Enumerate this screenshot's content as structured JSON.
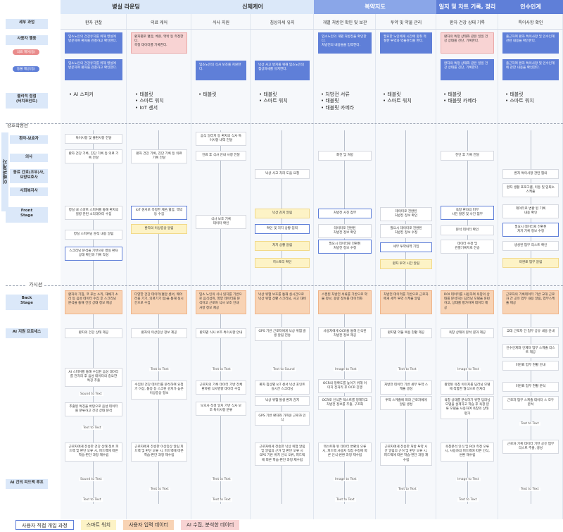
{
  "phases": [
    "병실 라운딩",
    "신체케어",
    "복약지도",
    "일지 및 차트 기록, 정리",
    "인수인계"
  ],
  "detail_header": "세부 과업",
  "tasks": [
    "환자 관찰",
    "의료 케어",
    "식사 지원",
    "침상자세 유지",
    "개별 처방전 확인 및 보관",
    "투약 및 약물 관리",
    "환자 건강 상태 기록",
    "특이사항 확인"
  ],
  "rows": {
    "user_action": "사용자 행동",
    "touchpoint": "물리적 접점\n(터치포인트)",
    "interaction": "상호작용선",
    "patient": "환자-보호자",
    "doctor": "의사",
    "coworker": "동료 간호(조무)사,\n요양보호사",
    "social_worker": "사회복지사",
    "front": "Front\nStage",
    "visibility": "가시선",
    "back": "Back\nStage",
    "ai_process": "AI 지원 프로세스",
    "ai_loop": "AI 간의 피드백 루프",
    "stakeholders": "이해관계자"
  },
  "pills": {
    "care": "의료 케어(등)",
    "meal": "동물 제공(등)"
  },
  "user_actions": {
    "a1": "입소노인의 건강유지를 위해 병실에 방문하여 환자를 관찰하고 확인한다.",
    "a2": "입소노인의 건강유지를 위해 병실에 방문하여 환자를 관찰하고 확인한다.",
    "b1": "환자별로 혈압, 체온, 맥박 등 측정한다.\n측정 데이터를 기록한다.",
    "c1": "입소노인의 식사 보조를 지원한다.",
    "d1": "낙상 사고 방지를 위해 입소노인의 침상자세를 유지한다.",
    "e1": "입소노인의 개별 처방전을 확인한다.\n처방전의 내용들을 입력한다.",
    "f1": "필요한 노인에게 시간에 맞춰 적절한 투약과 약물관리를 한다.",
    "g1": "환자의 특정 상태와 같은 일일 건강 상태를 진단, 기록한다.",
    "g2": "환자의 특정 상태와 같은 일일 건강 상태를 진단, 기록한다.",
    "h1": "출근하여 환자 특이사항 및 인수인계 관련 내용을 확인한다.",
    "h2": "출근하여 환자 특이사항 및 인수인계에 관한 내용을 확인한다."
  },
  "touchpoints": {
    "a": [
      "AI 스피커"
    ],
    "b": [
      "태블릿",
      "스마트 워치",
      "IoT 센서"
    ],
    "c": [
      "태블릿"
    ],
    "d": [
      "태블릿",
      "스마트 워치"
    ],
    "e": [
      "처방전 서류",
      "태블릿",
      "태블릿 카메라"
    ],
    "f": [
      "태블릿",
      "스마트 워치"
    ],
    "g": [
      "태블릿",
      "태블릿 카메라"
    ],
    "h": [
      "태블릿",
      "스마트 워치"
    ]
  },
  "interaction_items": {
    "a_patient": "특이사항 및 불편사항 전달",
    "a_doctor": "환자 건강 기록, 진단 기록 등 의료 기록 전달",
    "b_doctor": "환자 건강 기록, 진단 기록 등 의료 기록 전달",
    "c_patient": "음식 알러지 등 환자의 식사 특이사항 내역 전달",
    "c_doctor": "진료 후 식사 안내 사항 전달",
    "d_cowork": "낙상 사고 처리 도움 요청",
    "e_doctor": "회진 및 처방",
    "g_doctor": "진단 후 기록 전달",
    "h_cowork": "환자 특이사항 관련 협의",
    "h_social": "환자 생활 프로그램, 이동 및 입퇴소 스케줄"
  },
  "front_items": {
    "a1": "병실 내 스마트 스피커를 통해 환자의 질병 관련 소리데이터 수집",
    "a2": "병실 스피커닝 분석 내용 알림",
    "a3": "스크리닝 분석을 기반으로 병실 환자 상태 확인과 기록 작성",
    "b1": "IoT 센서로 측정한 체온,혈압, 맥박 등 수집",
    "b2": "환자의 이상증상 알림",
    "c1": "식사 보조 기록\n데이터 확인",
    "d1": "낙상 감지 알림",
    "d2": "확인 및 처치 상황 입력",
    "d3": "처치 상황 알림",
    "d4": "히스토리 확인",
    "e1": "처방전 사진 첨부",
    "e2": "데이터로 전환된\n처방전 정보 확인",
    "e3": "필요시 데이터로 전환된\n처방전 정보 수정",
    "f1": "데이터로 전환된\n처방전 정보 확인",
    "f2": "필요시 데이터로 전환된\n처방전 정보 수정",
    "f3": "세부 투약내역 기입",
    "f4": "환자 투약 시간 알림",
    "g1": "욕창 환자의 피부\n사진 촬영 및 사진 첨부",
    "g2": "분석 데이터 확인",
    "g3": "데이터 수정 및\n관찰기록지로 전송",
    "h1": "데이터로 변환 된 기록\n내용 확인",
    "h2": "필요시 데이터로 전환된\n처치 기록 정보 수정",
    "h3": "생성된 업무 리스트 확인",
    "h4": "미완료 업무 알림"
  },
  "visibility_label": "가시선",
  "back_items": {
    "a": "환자의 기침, 코 푸는 소리, 재채기 소리 등 음성 데이터 수집 후 스크리닝 분석을 통해 건강 상태 정보 제공",
    "b": "다양한 건강 데이터(혈압 센서, 웨어러블 기기, 의료기기 등)을 통해 실시간으로 수집",
    "c": "입소 노인의 식사 읽치를 기반으로 음식섭취, 영양 데이터를 분석하고 근로자 식사 보조 안내 사항 정보 제공",
    "d": "낙상 위험 보호를 통해 실시간으로 낙상 위험 상황 스크리닝, 사고 대비",
    "e": "스캔된 처방전 서류를 기반으로 약물 정보, 용량 정보를 데이터화",
    "f": "처방전 데이터를 기반으로 근로자에게 세부 투약 스케줄 알림",
    "g": "ROI 데이터를 사용하여 욕창의 상태를 분석하는 딥러닝 모델을 훈련하고, 상태를 평가하여 데이터 제공",
    "h": "근로자의 기록데이터 기반 교대 근로자 간 공유 업무 내용 알림, 업무스케줄 제공"
  },
  "ai_items": {
    "a1": "환자의 건강 상태 제공",
    "a2": "AI 스피커를 통해 수집된 음성 데이터를 전처리 후 음성 데이터의 중요한 특징 추출",
    "a3": "추출된 특징을 바탕으로 음성 데이터를 분류하고 건강 상태 분석",
    "a4": "근로자에게 전송한 건강 상태 정보 피드백 및 판단 오류 시, 피드백에 따른 학습-판단 과정 재수립",
    "b1": "환자의 이상증상 정보 제공",
    "b2": "수집된 건강 데이터를 분석하여 요청기 이상, 통증 등 스크린 감지가 높은 이상증상 정보",
    "b3": "근로자에게 전송한 이상증상 알림 피드백 및 판단 오류 시, 피드백에 따른 학습-판단 과정 재수립",
    "c1": "환자별 식사 보조 특이사항 안내",
    "c2": "근로자의 기록 데이터 기반 전체 환자별 식사영향 데이터 수집",
    "c3": "보호사 작성 일지 기반 식사 보조 특이사항 분류",
    "d1": "GPS 기반 근로자에게 낙상 위험 발생 알림 전송",
    "d2": "환자 침상별 IoT 센서 낙상 포인트 실시간 스크리닝",
    "d3": "낙상 위험 발생 환자 감지",
    "d4": "GPS 기반 환자와 가까운 근로자 인식",
    "d5": "근로자에게 전송한 낙상 위험 알림 및 알림의 근거 및 판단 오류 시 GPS 기반 위치 인식 오류, 피드백에 따른 학습-판단 과정 재수립",
    "e1": "사용자에게 OCR을 통해 인식된 처방전 정보 제공",
    "e2": "OCR의 정확도를 높이기 위해 이미지 전처리 후 OCR 진행",
    "e3": "OCR로 인식한 텍스트를 정제하고 처방전 정보를 추출, 구조화",
    "e4": "텍스트화 된 데이터 변환의 오류 시, 피드백 사용자 직접 수정에 따른 인식-변환 과정 재수립",
    "f1": "환자별 약물 복용 현황 제공",
    "f2": "처방전 데이터 기반 세부 투약 스케줄 생성",
    "f3": "투약 스케줄에 따라 근로자에게 알림 생성",
    "f4": "근로자에게 전송한 처방 투약 시간 알림의 근거 및 판단 오류 시, 피드백에 따른 학습-판단 과정 재수립",
    "g1": "욕창 상태의 분석 결과 제공",
    "g2": "촬영된 욕창 이미지를 딥러닝 모델에 적합한 형식으로 전처리",
    "g3": "욕창 상태를 분석하기 위한 딥러닝 모델을 설계하고 학습 후 욕창 분류 모델을 사용하여 욕창의 상태 평가",
    "g4": "욕창분석 인식 및 ROI 측정 오류 시, 사용자의 피드백에 따른 인식, 변환 재수립",
    "h1": "교대 근로자 간 업무 공유 내용 안내",
    "h2": "인수인계와 인계자 업무 스케줄 리스트 제공",
    "h3": "미완료 업무 현황 안내",
    "h4": "미완료 업무 현황 분석",
    "h5": "근로자 업무 스케줄 데이터 스 모두 분석",
    "h6": "근로자 기록 데이터 기반 공유 업무 리스트 추출, 생성"
  },
  "conversions": {
    "sound_to_text": "Sound to Text",
    "text_to_text": "Text to Text",
    "text_to_sound": "Text to Sound",
    "image_to_text": "Image to Text"
  },
  "loop": {
    "a1": "Sound to Text",
    "a2": "Text to Text",
    "b1": "Text to Text",
    "c1": "Text to Text",
    "c2": "Text to Text",
    "e1": "Image to Text",
    "e2": "Text to Text",
    "f1": "Text to Text",
    "g1": "Image to Text",
    "g2": "Text to Text",
    "h1": "Text to Text"
  },
  "legend": [
    "사용자 직접 개입 과정",
    "스마트 워치",
    "사용자 입력 데이터",
    "AI 수집, 분석한 데이터"
  ],
  "colors": {
    "header_light": "#dbe8f9",
    "accent": "#8aa6e8",
    "dark": "#5f7fd8",
    "yellow": "#fdf3c6",
    "orange": "#f8d3b4",
    "pink": "#f8d3d3"
  }
}
